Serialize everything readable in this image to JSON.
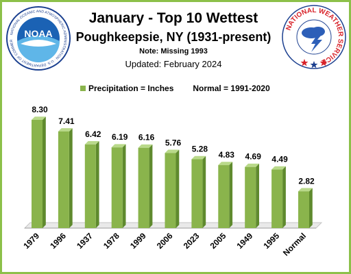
{
  "header": {
    "title": "January - Top 10 Wettest",
    "subtitle": "Poughkeepsie,  NY (1931-present)",
    "note": "Note: Missing  1993",
    "updated": "Updated:  February 2024"
  },
  "logos": {
    "noaa_text": "NOAA",
    "noaa_ring_text": "NATIONAL OCEANIC AND ATMOSPHERIC ADMINISTRATION · U.S. DEPARTMENT OF COMMERCE",
    "nws_text": "NATIONAL WEATHER SERVICE"
  },
  "legend": {
    "series_label": "Precipitation = Inches",
    "normal_label": "Normal = 1991-2020"
  },
  "colors": {
    "bar_front": "#8ab44c",
    "bar_side": "#5f8a2e",
    "bar_top": "#b9d98a",
    "frame": "#8cc04a"
  },
  "chart_data": {
    "type": "bar",
    "categories": [
      "1979",
      "1996",
      "1937",
      "1978",
      "1999",
      "2006",
      "2023",
      "2005",
      "1949",
      "1995",
      "Normal"
    ],
    "values": [
      8.3,
      7.41,
      6.42,
      6.19,
      6.16,
      5.76,
      5.28,
      4.83,
      4.69,
      4.49,
      2.82
    ],
    "value_labels": [
      "8.30",
      "7.41",
      "6.42",
      "6.19",
      "6.16",
      "5.76",
      "5.28",
      "4.83",
      "4.69",
      "4.49",
      "2.82"
    ],
    "ylim": [
      0,
      9
    ],
    "grid": false,
    "legend_position": "top"
  }
}
